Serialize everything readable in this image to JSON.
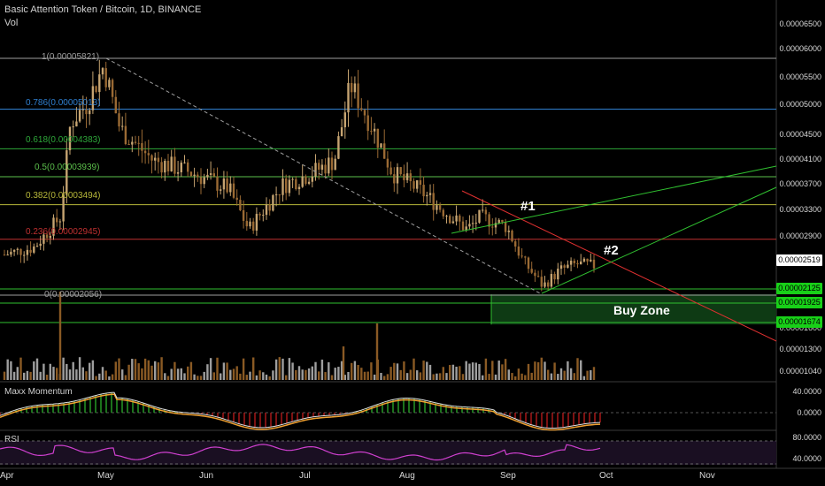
{
  "header": {
    "title": "Basic Attention Token / Bitcoin, 1D, BINANCE",
    "volume_label": "Vol"
  },
  "colors": {
    "background": "#000000",
    "candle_up": "#c6a471",
    "candle_down": "#9a6a34",
    "vol_up": "#9e9e9e",
    "vol_down": "#8a5a24",
    "fib_1": "#9e9e9e",
    "fib_0786": "#2f7fd0",
    "fib_0618": "#2ea83a",
    "fib_05": "#5cc04c",
    "fib_0382": "#b8b83a",
    "fib_0236": "#c03030",
    "fib_0": "#9e9e9e",
    "trend_red": "#e03030",
    "trend_green": "#30c030",
    "buy_zone": "#0e3a14",
    "rsi_line": "#d040d0",
    "momentum_green": "#30c030",
    "momentum_red": "#d02020",
    "momentum_orange": "#f0a030",
    "momentum_white": "#e0e0e0"
  },
  "fib_levels": [
    {
      "label": "1(0.00005821)",
      "price": 5.821e-05,
      "color": "#9e9e9e"
    },
    {
      "label": "0.786(0.00005013)",
      "price": 5.013e-05,
      "color": "#2f7fd0"
    },
    {
      "label": "0.618(0.00004383)",
      "price": 4.383e-05,
      "color": "#2ea83a"
    },
    {
      "label": "0.5(0.00003939)",
      "price": 3.939e-05,
      "color": "#5cc04c"
    },
    {
      "label": "0.382(0.00003494)",
      "price": 3.494e-05,
      "color": "#b8b83a"
    },
    {
      "label": "0.236(0.00002945)",
      "price": 2.945e-05,
      "color": "#c03030"
    },
    {
      "label": "0(0.00002056)",
      "price": 2.056e-05,
      "color": "#9e9e9e"
    }
  ],
  "price_axis": {
    "ticks": [
      "0.00006500",
      "0.00006000",
      "0.00005500",
      "0.00005000",
      "0.00004500",
      "0.00004100",
      "0.00003700",
      "0.00003300",
      "0.00002900",
      "0.00001600",
      "0.00001300",
      "0.00001040"
    ],
    "current_price": "0.00002519",
    "support_badges": [
      {
        "label": "0.00002125",
        "price": 2.125e-05
      },
      {
        "label": "0.00001925",
        "price": 1.925e-05
      },
      {
        "label": "0.00001674",
        "price": 1.674e-05
      }
    ]
  },
  "time_axis": {
    "months": [
      "Apr",
      "May",
      "Jun",
      "Jul",
      "Aug",
      "Sep",
      "Oct",
      "Nov"
    ]
  },
  "annotations": {
    "label_1": "#1",
    "label_2": "#2",
    "buy_zone": "Buy Zone"
  },
  "momentum_pane": {
    "title": "Maxx Momentum",
    "ticks": [
      "40.0000",
      "0.0000"
    ]
  },
  "rsi_pane": {
    "title": "RSI",
    "ticks": [
      "80.0000",
      "40.0000"
    ]
  },
  "chart_data": {
    "type": "candlestick",
    "title": "Basic Attention Token / Bitcoin, 1D, BINANCE",
    "symbol": "BAT/BTC",
    "interval": "1D",
    "exchange": "BINANCE",
    "x_ticks": [
      "Apr",
      "May",
      "Jun",
      "Jul",
      "Aug",
      "Sep",
      "Oct",
      "Nov"
    ],
    "close_path_approx": [
      {
        "date": "Apr 1",
        "close": 2.7e-05
      },
      {
        "date": "Apr 10",
        "close": 2.82e-05
      },
      {
        "date": "Apr 18",
        "close": 3.3e-05
      },
      {
        "date": "Apr 21",
        "close": 4.8e-05
      },
      {
        "date": "Apr 26",
        "close": 5.1e-05
      },
      {
        "date": "May 1",
        "close": 5.7e-05
      },
      {
        "date": "May 6",
        "close": 4.7e-05
      },
      {
        "date": "May 16",
        "close": 4.2e-05
      },
      {
        "date": "May 28",
        "close": 4e-05
      },
      {
        "date": "Jun 8",
        "close": 3.75e-05
      },
      {
        "date": "Jun 14",
        "close": 3.1e-05
      },
      {
        "date": "Jun 24",
        "close": 3.8e-05
      },
      {
        "date": "Jul 3",
        "close": 4e-05
      },
      {
        "date": "Jul 10",
        "close": 4.2e-05
      },
      {
        "date": "Jul 15",
        "close": 5.4e-05
      },
      {
        "date": "Jul 22",
        "close": 4.7e-05
      },
      {
        "date": "Jul 28",
        "close": 4e-05
      },
      {
        "date": "Aug 6",
        "close": 3.7e-05
      },
      {
        "date": "Aug 15",
        "close": 3.3e-05
      },
      {
        "date": "Aug 20",
        "close": 3.1e-05
      },
      {
        "date": "Aug 24",
        "close": 3.3e-05
      },
      {
        "date": "Sep 1",
        "close": 3.15e-05
      },
      {
        "date": "Sep 6",
        "close": 2.6e-05
      },
      {
        "date": "Sep 12",
        "close": 2.2e-05
      },
      {
        "date": "Sep 17",
        "close": 2.45e-05
      },
      {
        "date": "Sep 22",
        "close": 2.55e-05
      },
      {
        "date": "Sep 28",
        "close": 2.52e-05
      }
    ]
  }
}
